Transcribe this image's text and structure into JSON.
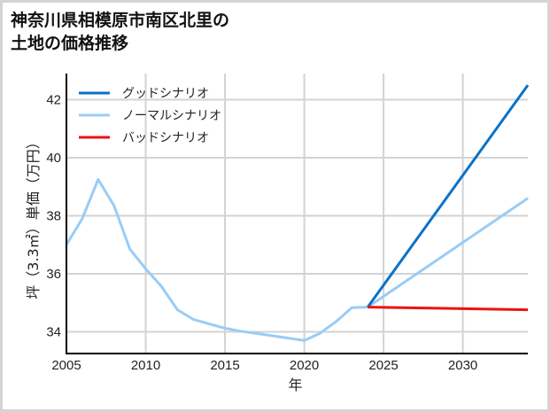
{
  "title": "神奈川県相模原市南区北里の\n土地の価格推移",
  "chart_data": {
    "type": "line",
    "title": "神奈川県相模原市南区北里の土地の価格推移",
    "xlabel": "年",
    "ylabel": "坪（3.3㎡）単価（万円）",
    "xlim": [
      2005,
      2034.1
    ],
    "ylim": [
      33.25,
      42.9
    ],
    "xticks": [
      2005,
      2010,
      2015,
      2020,
      2025,
      2030
    ],
    "yticks": [
      34,
      36,
      38,
      40,
      42
    ],
    "grid": true,
    "legend_position": "upper left",
    "series": [
      {
        "name": "グッドシナリオ",
        "color": "#0a72c8",
        "x": [
          2024,
          2034.1
        ],
        "y": [
          34.85,
          42.5
        ]
      },
      {
        "name": "ノーマルシナリオ",
        "color": "#99ccf7",
        "x": [
          2005,
          2006,
          2007,
          2008,
          2009,
          2010,
          2011,
          2012,
          2013,
          2014,
          2015,
          2016,
          2017,
          2018,
          2019,
          2020,
          2021,
          2022,
          2023,
          2024,
          2034.1
        ],
        "y": [
          37.0,
          37.9,
          39.25,
          38.35,
          36.85,
          36.17,
          35.56,
          34.76,
          34.43,
          34.27,
          34.12,
          34.02,
          33.94,
          33.86,
          33.78,
          33.7,
          33.95,
          34.35,
          34.83,
          34.85,
          38.6
        ]
      },
      {
        "name": "バッドシナリオ",
        "color": "#ee1111",
        "x": [
          2024,
          2034.1
        ],
        "y": [
          34.85,
          34.76
        ]
      }
    ]
  }
}
